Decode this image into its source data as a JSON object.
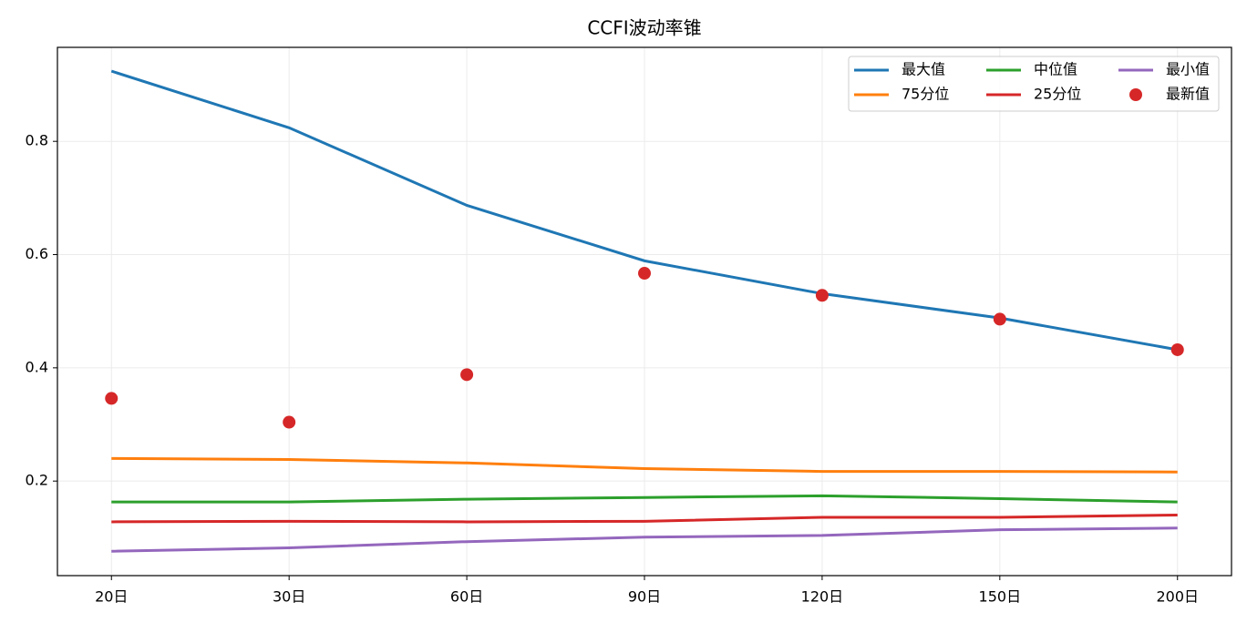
{
  "chart_data": {
    "type": "line",
    "title": "CCFI波动率锥",
    "categories": [
      "20日",
      "30日",
      "60日",
      "90日",
      "120日",
      "150日",
      "200日"
    ],
    "series": [
      {
        "name": "最大值",
        "color": "#1f77b4",
        "values": [
          0.924,
          0.824,
          0.687,
          0.589,
          0.531,
          0.488,
          0.432
        ]
      },
      {
        "name": "75分位",
        "color": "#ff7f0e",
        "values": [
          0.24,
          0.238,
          0.232,
          0.222,
          0.217,
          0.217,
          0.216
        ]
      },
      {
        "name": "中位值",
        "color": "#2ca02c",
        "values": [
          0.163,
          0.163,
          0.168,
          0.171,
          0.174,
          0.169,
          0.163
        ]
      },
      {
        "name": "25分位",
        "color": "#d62728",
        "values": [
          0.128,
          0.129,
          0.128,
          0.129,
          0.136,
          0.136,
          0.14
        ]
      },
      {
        "name": "最小值",
        "color": "#9467bd",
        "values": [
          0.076,
          0.082,
          0.093,
          0.101,
          0.104,
          0.114,
          0.117
        ]
      },
      {
        "name": "最新值",
        "color": "#d62728",
        "kind": "scatter",
        "values": [
          0.346,
          0.304,
          0.388,
          0.567,
          0.528,
          0.486,
          0.432
        ]
      }
    ],
    "ylim": [
      0.033,
      0.966
    ],
    "yticks": [
      0.2,
      0.4,
      0.6,
      0.8
    ],
    "grid": true,
    "legend": "upper right"
  }
}
